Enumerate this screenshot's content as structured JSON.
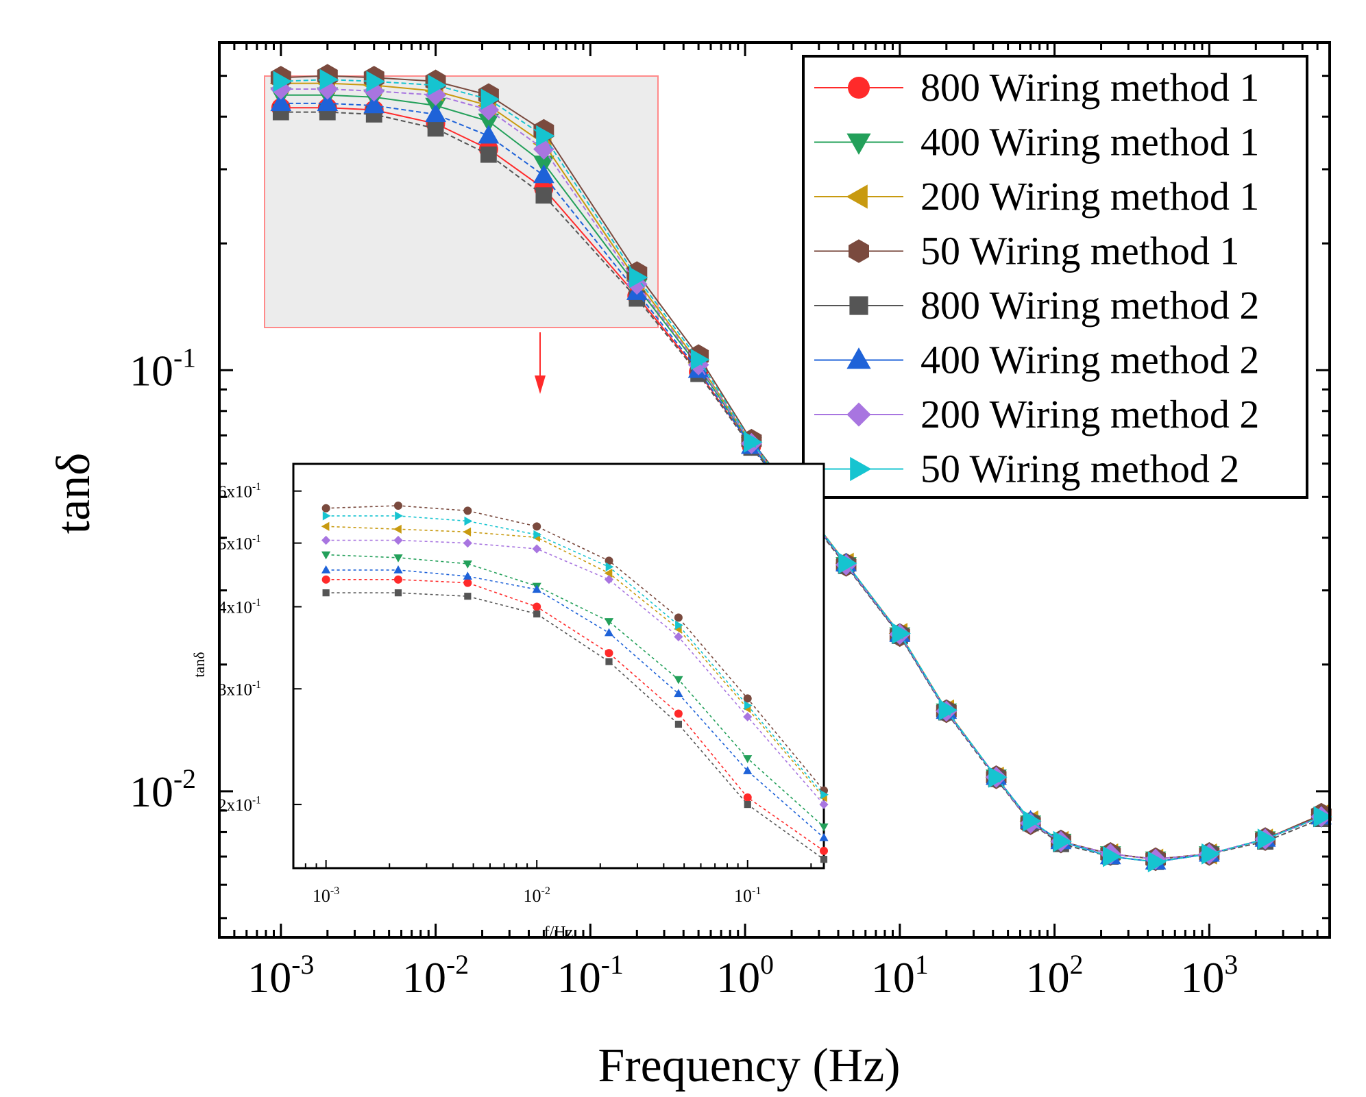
{
  "chart_data": [
    {
      "type": "line",
      "xlabel": "Frequency (Hz)",
      "ylabel": "tanδ",
      "xscale": "log",
      "yscale": "log",
      "xlim": [
        0.0004,
        6000
      ],
      "ylim": [
        0.0045,
        0.6
      ],
      "x_ticks": [
        {
          "value": 0.001,
          "base": "10",
          "exp": "-3"
        },
        {
          "value": 0.01,
          "base": "10",
          "exp": "-2"
        },
        {
          "value": 0.1,
          "base": "10",
          "exp": "-1"
        },
        {
          "value": 1,
          "base": "10",
          "exp": "0"
        },
        {
          "value": 10,
          "base": "10",
          "exp": "1"
        },
        {
          "value": 100,
          "base": "10",
          "exp": "2"
        },
        {
          "value": 1000,
          "base": "10",
          "exp": "3"
        }
      ],
      "y_ticks": [
        {
          "value": 0.1,
          "base": "10",
          "exp": "-1"
        },
        {
          "value": 0.01,
          "base": "10",
          "exp": "-2"
        }
      ],
      "legend": "top-right",
      "x": [
        0.001,
        0.002,
        0.004,
        0.01,
        0.022,
        0.05,
        0.2,
        0.5,
        1.1,
        2.3,
        4.5,
        10,
        20,
        42,
        70,
        110,
        230,
        450,
        1000,
        2300,
        5300
      ],
      "series": [
        {
          "name": "800 Wiring method 1",
          "color": "#ff2a2a",
          "marker": "circle",
          "values": [
            0.42,
            0.42,
            0.415,
            0.385,
            0.335,
            0.27,
            0.15,
            0.099,
            0.066,
            0.0475,
            0.0345,
            0.0235,
            0.0155,
            0.0108,
            0.0084,
            0.0076,
            0.0071,
            0.0069,
            0.0071,
            0.0077,
            0.0087
          ]
        },
        {
          "name": "400 Wiring method 1",
          "color": "#23a05a",
          "marker": "triangle-down",
          "values": [
            0.45,
            0.45,
            0.445,
            0.425,
            0.39,
            0.31,
            0.158,
            0.102,
            0.0665,
            0.0475,
            0.0345,
            0.0235,
            0.0155,
            0.0108,
            0.0084,
            0.0076,
            0.0071,
            0.0069,
            0.0071,
            0.0077,
            0.0087
          ]
        },
        {
          "name": "200 Wiring method 1",
          "color": "#c89a10",
          "marker": "triangle-left",
          "values": [
            0.48,
            0.48,
            0.475,
            0.46,
            0.425,
            0.345,
            0.163,
            0.104,
            0.067,
            0.048,
            0.0348,
            0.0237,
            0.0156,
            0.0108,
            0.0085,
            0.0076,
            0.0071,
            0.0069,
            0.0071,
            0.0077,
            0.0088
          ]
        },
        {
          "name": "50   Wiring method 1",
          "color": "#7a4a3e",
          "marker": "hexagon",
          "values": [
            0.495,
            0.5,
            0.495,
            0.485,
            0.45,
            0.37,
            0.17,
            0.108,
            0.068,
            0.048,
            0.0345,
            0.0235,
            0.0155,
            0.0108,
            0.0084,
            0.0076,
            0.0071,
            0.0069,
            0.0071,
            0.0077,
            0.0088
          ]
        },
        {
          "name": "800 Wiring method 2",
          "color": "#555555",
          "marker": "square",
          "values": [
            0.41,
            0.41,
            0.405,
            0.375,
            0.325,
            0.26,
            0.148,
            0.098,
            0.0655,
            0.047,
            0.0343,
            0.0234,
            0.0154,
            0.0107,
            0.0084,
            0.0075,
            0.007,
            0.0068,
            0.0071,
            0.0076,
            0.0086
          ]
        },
        {
          "name": "400 Wiring method 2",
          "color": "#1e62d8",
          "marker": "triangle-up",
          "values": [
            0.43,
            0.43,
            0.425,
            0.405,
            0.36,
            0.29,
            0.153,
            0.1,
            0.066,
            0.0475,
            0.0347,
            0.0236,
            0.0155,
            0.0108,
            0.0085,
            0.0076,
            0.007,
            0.0068,
            0.0071,
            0.0077,
            0.0087
          ]
        },
        {
          "name": "200 Wiring method 2",
          "color": "#a875e0",
          "marker": "diamond",
          "values": [
            0.465,
            0.465,
            0.46,
            0.45,
            0.415,
            0.335,
            0.16,
            0.103,
            0.067,
            0.048,
            0.0345,
            0.0236,
            0.0155,
            0.0108,
            0.0084,
            0.0076,
            0.0071,
            0.0069,
            0.0071,
            0.0077,
            0.0087
          ]
        },
        {
          "name": "50   Wiring method 2",
          "color": "#16c4d0",
          "marker": "triangle-right",
          "values": [
            0.485,
            0.49,
            0.485,
            0.475,
            0.44,
            0.36,
            0.166,
            0.106,
            0.0675,
            0.048,
            0.0348,
            0.0237,
            0.0156,
            0.0108,
            0.0085,
            0.0076,
            0.007,
            0.0068,
            0.0071,
            0.0077,
            0.0087
          ]
        }
      ]
    },
    {
      "type": "line",
      "xlabel": "f/Hz",
      "ylabel": "tanδ",
      "xscale": "log",
      "yscale": "log",
      "xlim": [
        0.0007,
        0.23
      ],
      "ylim": [
        0.16,
        0.66
      ],
      "x_ticks": [
        {
          "value": 0.001,
          "base": "10",
          "exp": "-3"
        },
        {
          "value": 0.01,
          "base": "10",
          "exp": "-2"
        },
        {
          "value": 0.1,
          "base": "10",
          "exp": "-1"
        }
      ],
      "y_ticks": [
        {
          "value": 0.6,
          "label": "6x10",
          "exp": "-1"
        },
        {
          "value": 0.5,
          "label": "5x10",
          "exp": "-1"
        },
        {
          "value": 0.4,
          "label": "4x10",
          "exp": "-1"
        },
        {
          "value": 0.3,
          "label": "3x10",
          "exp": "-1"
        },
        {
          "value": 0.2,
          "label": "2x10",
          "exp": "-1"
        }
      ],
      "x": [
        0.001,
        0.0022,
        0.0047,
        0.01,
        0.022,
        0.047,
        0.1,
        0.23
      ],
      "series": [
        {
          "color": "#ff2a2a",
          "marker": "circle",
          "values": [
            0.44,
            0.44,
            0.435,
            0.4,
            0.34,
            0.275,
            0.205,
            0.17
          ]
        },
        {
          "color": "#23a05a",
          "marker": "triangle-down",
          "values": [
            0.48,
            0.475,
            0.465,
            0.43,
            0.38,
            0.31,
            0.235,
            0.185
          ]
        },
        {
          "color": "#c89a10",
          "marker": "triangle-left",
          "values": [
            0.53,
            0.525,
            0.52,
            0.51,
            0.45,
            0.37,
            0.28,
            0.205
          ]
        },
        {
          "color": "#7a4a3e",
          "marker": "circle",
          "values": [
            0.565,
            0.57,
            0.56,
            0.53,
            0.47,
            0.385,
            0.29,
            0.21
          ]
        },
        {
          "color": "#555555",
          "marker": "square",
          "values": [
            0.42,
            0.42,
            0.415,
            0.39,
            0.33,
            0.265,
            0.2,
            0.165
          ]
        },
        {
          "color": "#1e62d8",
          "marker": "triangle-up",
          "values": [
            0.455,
            0.455,
            0.445,
            0.425,
            0.365,
            0.295,
            0.225,
            0.178
          ]
        },
        {
          "color": "#a875e0",
          "marker": "diamond",
          "values": [
            0.505,
            0.505,
            0.5,
            0.49,
            0.44,
            0.36,
            0.272,
            0.2
          ]
        },
        {
          "color": "#16c4d0",
          "marker": "triangle-right",
          "values": [
            0.55,
            0.55,
            0.54,
            0.515,
            0.46,
            0.375,
            0.283,
            0.207
          ]
        }
      ]
    }
  ]
}
